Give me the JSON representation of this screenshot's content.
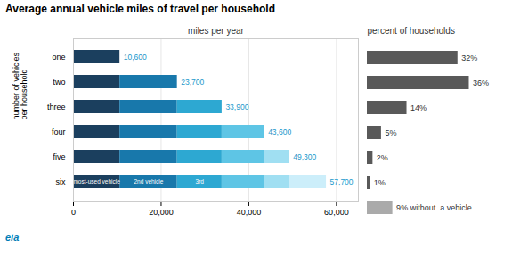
{
  "chart_data": [
    {
      "type": "bar",
      "orientation": "horizontal",
      "stacked": true,
      "title": "Average annual vehicle miles of travel per household",
      "xlabel": "miles per year",
      "ylabel": "number of vehicles\nper household",
      "categories": [
        "one",
        "two",
        "three",
        "four",
        "five",
        "six"
      ],
      "series": [
        {
          "name": "most-used vehicle",
          "color": "#1b3f5e",
          "values": [
            10600,
            10600,
            10600,
            10600,
            10600,
            10600
          ]
        },
        {
          "name": "2nd vehicle",
          "color": "#1878ab",
          "values": [
            0,
            13100,
            13100,
            13100,
            13100,
            13100
          ]
        },
        {
          "name": "3rd",
          "color": "#2da8d2",
          "values": [
            0,
            0,
            10200,
            10200,
            10200,
            10200
          ]
        },
        {
          "color": "#5ec5e5",
          "values": [
            0,
            0,
            0,
            9700,
            9700,
            9700
          ]
        },
        {
          "color": "#a0dff2",
          "values": [
            0,
            0,
            0,
            0,
            5700,
            5700
          ]
        },
        {
          "color": "#cceefa",
          "values": [
            0,
            0,
            0,
            0,
            0,
            8400
          ]
        }
      ],
      "totals": [
        10600,
        23700,
        33900,
        43600,
        49300,
        57700
      ],
      "total_labels": [
        "10,600",
        "23,700",
        "33,900",
        "43,600",
        "49,300",
        "57,700"
      ],
      "total_color": "#2299cc",
      "xlim": [
        0,
        65000
      ],
      "xticks": [
        0,
        {
          "value": 20000,
          "label": "20,000"
        },
        {
          "value": 40000,
          "label": "40,000"
        },
        {
          "value": 60000,
          "label": "60,000"
        }
      ],
      "grid": true,
      "annotations": [
        {
          "text": "eia",
          "color": "#007db7"
        }
      ]
    },
    {
      "type": "bar",
      "orientation": "horizontal",
      "title": "percent of households",
      "categories": [
        "one",
        "two",
        "three",
        "four",
        "five",
        "six",
        null
      ],
      "values": [
        32,
        36,
        14,
        5,
        2,
        1,
        9
      ],
      "value_labels": [
        "32%",
        "36%",
        "14%",
        "5%",
        "2%",
        "1%",
        "9% without  a vehicle"
      ],
      "data_labels": true,
      "colors": [
        "#595959",
        "#595959",
        "#595959",
        "#595959",
        "#595959",
        "#595959",
        "#aaaaaa"
      ],
      "xlim": [
        0,
        50
      ],
      "tick_labels": false,
      "grid": false
    }
  ]
}
